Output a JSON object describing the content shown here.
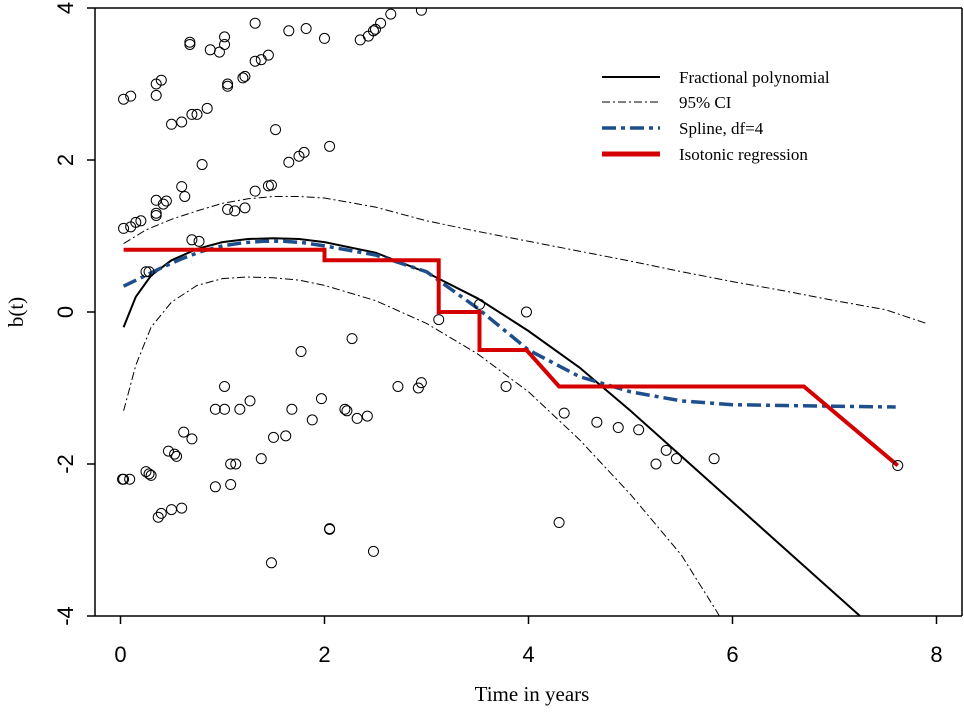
{
  "chart_data": {
    "type": "scatter",
    "title": "",
    "xlabel": "Time in years",
    "ylabel": "b(t)",
    "xlim": [
      -0.25,
      8.25
    ],
    "ylim": [
      -4,
      4
    ],
    "xticks": [
      0,
      2,
      4,
      6,
      8
    ],
    "yticks": [
      -4,
      -2,
      0,
      2,
      4
    ],
    "grid": false,
    "legend_position": "top-right",
    "points": [
      [
        0.03,
        2.8
      ],
      [
        0.1,
        2.84
      ],
      [
        0.35,
        2.85
      ],
      [
        0.35,
        3.0
      ],
      [
        0.4,
        3.05
      ],
      [
        0.5,
        2.47
      ],
      [
        0.68,
        3.52
      ],
      [
        0.68,
        3.55
      ],
      [
        0.88,
        3.45
      ],
      [
        0.97,
        3.42
      ],
      [
        1.02,
        3.52
      ],
      [
        1.02,
        3.62
      ],
      [
        1.05,
        2.97
      ],
      [
        1.05,
        3.0
      ],
      [
        1.2,
        3.08
      ],
      [
        1.22,
        3.1
      ],
      [
        1.32,
        3.8
      ],
      [
        1.32,
        3.3
      ],
      [
        1.38,
        3.32
      ],
      [
        1.45,
        3.38
      ],
      [
        1.65,
        3.7
      ],
      [
        1.82,
        3.73
      ],
      [
        2.0,
        3.6
      ],
      [
        2.35,
        3.58
      ],
      [
        2.43,
        3.63
      ],
      [
        2.48,
        3.7
      ],
      [
        2.5,
        3.72
      ],
      [
        2.55,
        3.8
      ],
      [
        2.65,
        3.92
      ],
      [
        2.95,
        3.97
      ],
      [
        0.6,
        2.5
      ],
      [
        0.7,
        2.6
      ],
      [
        0.75,
        2.6
      ],
      [
        0.85,
        2.68
      ],
      [
        1.52,
        2.4
      ],
      [
        1.65,
        1.97
      ],
      [
        1.75,
        2.05
      ],
      [
        1.8,
        2.1
      ],
      [
        2.05,
        2.18
      ],
      [
        0.8,
        1.94
      ],
      [
        0.6,
        1.65
      ],
      [
        0.63,
        1.52
      ],
      [
        0.35,
        1.47
      ],
      [
        0.35,
        1.3
      ],
      [
        0.35,
        1.27
      ],
      [
        0.42,
        1.42
      ],
      [
        0.45,
        1.46
      ],
      [
        1.32,
        1.59
      ],
      [
        1.45,
        1.66
      ],
      [
        1.48,
        1.67
      ],
      [
        1.05,
        1.35
      ],
      [
        1.12,
        1.33
      ],
      [
        1.22,
        1.37
      ],
      [
        0.03,
        1.1
      ],
      [
        0.1,
        1.12
      ],
      [
        0.15,
        1.18
      ],
      [
        0.2,
        1.2
      ],
      [
        0.7,
        0.95
      ],
      [
        0.77,
        0.93
      ],
      [
        0.25,
        0.53
      ],
      [
        0.28,
        0.53
      ],
      [
        3.52,
        0.1
      ],
      [
        3.12,
        -0.1
      ],
      [
        3.98,
        0.0
      ],
      [
        1.77,
        -0.52
      ],
      [
        2.27,
        -0.35
      ],
      [
        3.78,
        -0.98
      ],
      [
        2.72,
        -0.98
      ],
      [
        2.92,
        -1.0
      ],
      [
        2.95,
        -0.93
      ],
      [
        1.02,
        -0.98
      ],
      [
        1.02,
        -1.28
      ],
      [
        0.93,
        -1.28
      ],
      [
        1.17,
        -1.28
      ],
      [
        1.27,
        -1.17
      ],
      [
        1.68,
        -1.28
      ],
      [
        1.97,
        -1.14
      ],
      [
        2.2,
        -1.28
      ],
      [
        2.22,
        -1.3
      ],
      [
        2.32,
        -1.4
      ],
      [
        2.42,
        -1.37
      ],
      [
        1.88,
        -1.42
      ],
      [
        1.62,
        -1.63
      ],
      [
        1.5,
        -1.65
      ],
      [
        1.38,
        -1.93
      ],
      [
        0.62,
        -1.58
      ],
      [
        0.7,
        -1.67
      ],
      [
        0.47,
        -1.83
      ],
      [
        0.53,
        -1.87
      ],
      [
        0.55,
        -1.9
      ],
      [
        1.08,
        -2.0
      ],
      [
        1.13,
        -2.0
      ],
      [
        0.02,
        -2.2
      ],
      [
        0.03,
        -2.2
      ],
      [
        0.09,
        -2.2
      ],
      [
        0.25,
        -2.1
      ],
      [
        0.28,
        -2.13
      ],
      [
        0.3,
        -2.15
      ],
      [
        0.93,
        -2.3
      ],
      [
        1.08,
        -2.27
      ],
      [
        0.5,
        -2.6
      ],
      [
        0.6,
        -2.58
      ],
      [
        0.37,
        -2.7
      ],
      [
        0.4,
        -2.65
      ],
      [
        2.05,
        -2.85
      ],
      [
        2.05,
        -2.86
      ],
      [
        2.48,
        -3.15
      ],
      [
        1.48,
        -3.3
      ],
      [
        4.35,
        -1.33
      ],
      [
        4.67,
        -1.45
      ],
      [
        4.88,
        -1.52
      ],
      [
        5.08,
        -1.55
      ],
      [
        5.35,
        -1.82
      ],
      [
        5.45,
        -1.93
      ],
      [
        5.25,
        -2.0
      ],
      [
        5.82,
        -1.93
      ],
      [
        4.3,
        -2.77
      ],
      [
        7.62,
        -2.02
      ]
    ],
    "series": [
      {
        "name": "Fractional polynomial",
        "style": "solid",
        "color": "#000000",
        "x": [
          0.03,
          0.15,
          0.3,
          0.5,
          0.75,
          1.0,
          1.25,
          1.5,
          1.75,
          2.0,
          2.5,
          3.0,
          3.5,
          4.0,
          4.5,
          5.0,
          5.5,
          6.0,
          6.5,
          7.0,
          7.5,
          7.75
        ],
        "y": [
          -0.2,
          0.2,
          0.48,
          0.68,
          0.83,
          0.92,
          0.96,
          0.97,
          0.96,
          0.92,
          0.78,
          0.52,
          0.18,
          -0.25,
          -0.73,
          -1.3,
          -1.9,
          -2.5,
          -3.1,
          -3.7,
          -4.3,
          -4.62
        ]
      },
      {
        "name": "95% CI",
        "style": "dash-dot",
        "color": "#000000",
        "x": [
          0.03,
          0.25,
          0.5,
          0.75,
          1.0,
          1.25,
          1.5,
          1.75,
          2.0,
          2.5,
          3.0,
          3.5,
          4.0,
          4.5,
          5.0,
          5.5,
          6.0,
          6.5,
          7.0,
          7.5,
          7.9
        ],
        "y": [
          0.9,
          1.08,
          1.22,
          1.33,
          1.43,
          1.49,
          1.52,
          1.52,
          1.5,
          1.38,
          1.2,
          1.06,
          0.93,
          0.8,
          0.67,
          0.53,
          0.4,
          0.28,
          0.15,
          0.03,
          -0.15
        ]
      },
      {
        "name": "",
        "style": "dash-dot",
        "color": "#000000",
        "x": [
          0.03,
          0.15,
          0.3,
          0.5,
          0.75,
          1.0,
          1.25,
          1.5,
          1.75,
          2.0,
          2.5,
          3.0,
          3.5,
          4.0,
          4.5,
          5.0,
          5.5,
          5.85,
          6.0
        ],
        "y": [
          -1.3,
          -0.7,
          -0.2,
          0.13,
          0.35,
          0.44,
          0.46,
          0.45,
          0.42,
          0.35,
          0.15,
          -0.15,
          -0.55,
          -1.05,
          -1.68,
          -2.4,
          -3.2,
          -3.95,
          -4.3
        ]
      },
      {
        "name": "Spline, df=4",
        "style": "dash",
        "color": "#1f4e8c",
        "x": [
          0.03,
          0.2,
          0.4,
          0.6,
          0.8,
          1.0,
          1.2,
          1.4,
          1.6,
          1.8,
          2.0,
          2.5,
          3.0,
          3.5,
          4.0,
          4.5,
          5.0,
          5.5,
          6.0,
          6.5,
          7.0,
          7.6
        ],
        "y": [
          0.34,
          0.45,
          0.58,
          0.7,
          0.8,
          0.87,
          0.91,
          0.93,
          0.93,
          0.91,
          0.87,
          0.75,
          0.53,
          0.05,
          -0.5,
          -0.85,
          -1.05,
          -1.17,
          -1.22,
          -1.23,
          -1.24,
          -1.25
        ]
      },
      {
        "name": "Isotonic regression",
        "style": "solid-thick",
        "color": "#d40000",
        "x": [
          0.03,
          2.0,
          2.0,
          3.12,
          3.12,
          3.52,
          3.52,
          3.78,
          3.78,
          3.98,
          3.98,
          4.3,
          4.3,
          6.7,
          7.62
        ],
        "y": [
          0.82,
          0.82,
          0.68,
          0.68,
          0.0,
          0.0,
          -0.5,
          -0.5,
          -0.5,
          -0.5,
          -0.5,
          -0.98,
          -0.98,
          -0.98,
          -2.02
        ]
      }
    ]
  }
}
